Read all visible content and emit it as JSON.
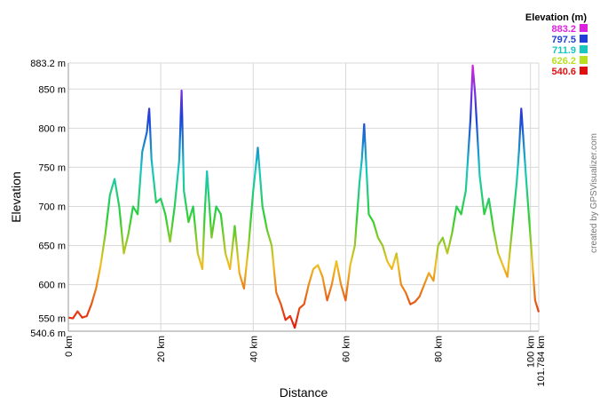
{
  "chart_data": {
    "type": "line",
    "title": "",
    "xlabel": "Distance",
    "ylabel": "Elevation",
    "xlim": [
      0,
      101.784
    ],
    "ylim": [
      540.6,
      883.2
    ],
    "grid": true,
    "legend_position": "top-right",
    "x_ticks": [
      {
        "value": 0,
        "label": "0 km"
      },
      {
        "value": 20,
        "label": "20 km"
      },
      {
        "value": 40,
        "label": "40 km"
      },
      {
        "value": 60,
        "label": "60 km"
      },
      {
        "value": 80,
        "label": "80 km"
      },
      {
        "value": 100,
        "label": "100 km"
      },
      {
        "value": 101.784,
        "label": "101.784 km"
      }
    ],
    "y_ticks": [
      {
        "value": 540.6,
        "label": "540.6 m"
      },
      {
        "value": 550,
        "label": "550 m"
      },
      {
        "value": 600,
        "label": "600 m"
      },
      {
        "value": 650,
        "label": "650 m"
      },
      {
        "value": 700,
        "label": "700 m"
      },
      {
        "value": 750,
        "label": "750 m"
      },
      {
        "value": 800,
        "label": "800 m"
      },
      {
        "value": 850,
        "label": "850 m"
      },
      {
        "value": 883.2,
        "label": "883.2 m"
      }
    ],
    "legend": {
      "title": "Elevation (m)",
      "entries": [
        {
          "label": "883.2",
          "color": "#e020e0"
        },
        {
          "label": "797.5",
          "color": "#1f3fd8"
        },
        {
          "label": "711.9",
          "color": "#18c8c0"
        },
        {
          "label": "626.2",
          "color": "#b8e020"
        },
        {
          "label": "540.6",
          "color": "#e01010"
        }
      ]
    },
    "series": [
      {
        "x": [
          0,
          1,
          2,
          3,
          4,
          5,
          6,
          7,
          8,
          9,
          10,
          11,
          12,
          13,
          14,
          15,
          16,
          17,
          17.5,
          18,
          19,
          20,
          21,
          22,
          23,
          24,
          24.5,
          25,
          26,
          27,
          28,
          29,
          29.5,
          30,
          31,
          32,
          33,
          34,
          35,
          36,
          37,
          38,
          39,
          40,
          41,
          42,
          43,
          44,
          45,
          46,
          47,
          48,
          49,
          50,
          51,
          52,
          53,
          54,
          55,
          56,
          57,
          58,
          59,
          60,
          61,
          62,
          63,
          63.5,
          64,
          65,
          66,
          67,
          68,
          69,
          70,
          71,
          72,
          73,
          74,
          75,
          76,
          77,
          78,
          79,
          80,
          81,
          82,
          83,
          84,
          85,
          86,
          87,
          87.5,
          88,
          89,
          90,
          91,
          92,
          93,
          94,
          95,
          96,
          97,
          97.5,
          98,
          99,
          100,
          101,
          101.784
        ],
        "y": [
          558,
          557,
          566,
          558,
          560,
          575,
          595,
          625,
          665,
          715,
          735,
          700,
          640,
          665,
          700,
          690,
          770,
          795,
          825,
          760,
          705,
          710,
          690,
          655,
          700,
          760,
          848,
          720,
          680,
          700,
          640,
          620,
          690,
          745,
          660,
          700,
          690,
          640,
          620,
          675,
          615,
          595,
          650,
          720,
          775,
          700,
          670,
          650,
          590,
          575,
          555,
          560,
          545,
          570,
          575,
          600,
          620,
          625,
          610,
          580,
          600,
          630,
          600,
          580,
          625,
          650,
          730,
          760,
          805,
          690,
          680,
          660,
          650,
          630,
          620,
          640,
          600,
          590,
          575,
          578,
          585,
          600,
          615,
          605,
          650,
          660,
          640,
          665,
          700,
          690,
          720,
          810,
          880,
          845,
          740,
          690,
          710,
          670,
          640,
          625,
          610,
          670,
          730,
          770,
          825,
          740,
          660,
          580,
          565
        ]
      }
    ]
  },
  "credit": "created by GPSVisualizer.com"
}
